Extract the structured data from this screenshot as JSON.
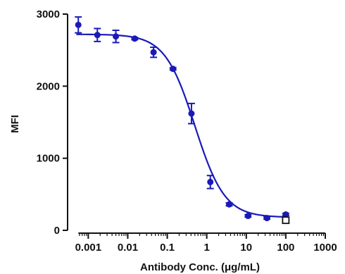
{
  "chart_data": {
    "type": "scatter",
    "xlabel": "Antibody Conc. (μg/mL)",
    "ylabel": "MFI",
    "x_scale": "log",
    "xlim": [
      0.0003,
      1000
    ],
    "ylim": [
      0,
      3000
    ],
    "x_ticks": [
      0.001,
      0.01,
      0.1,
      1,
      10,
      100,
      1000
    ],
    "x_tick_labels": [
      "0.001",
      "0.01",
      "0.1",
      "1",
      "10",
      "100",
      "1000"
    ],
    "y_ticks": [
      0,
      1000,
      2000,
      3000
    ],
    "y_tick_labels": [
      "0",
      "1000",
      "2000",
      "3000"
    ],
    "grid": false,
    "legend": "none",
    "colors": {
      "series": "#1a1ab8",
      "axis": "#111111"
    },
    "series": [
      {
        "marker": "circle",
        "points": [
          {
            "x": 0.00056,
            "y": 2850,
            "err": 110
          },
          {
            "x": 0.0017,
            "y": 2710,
            "err": 90
          },
          {
            "x": 0.005,
            "y": 2690,
            "err": 85
          },
          {
            "x": 0.015,
            "y": 2660,
            "err": 15
          },
          {
            "x": 0.045,
            "y": 2470,
            "err": 70
          },
          {
            "x": 0.14,
            "y": 2240,
            "err": 15
          },
          {
            "x": 0.41,
            "y": 1620,
            "err": 140
          },
          {
            "x": 1.23,
            "y": 670,
            "err": 90
          },
          {
            "x": 3.7,
            "y": 360,
            "err": 20
          },
          {
            "x": 11.1,
            "y": 200,
            "err": 15
          },
          {
            "x": 33.3,
            "y": 170,
            "err": 15
          },
          {
            "x": 100,
            "y": 220,
            "err": 15
          }
        ]
      },
      {
        "marker": "open-square",
        "points": [
          {
            "x": 100,
            "y": 140
          }
        ]
      }
    ],
    "fit_curve": {
      "model": "4PL",
      "top": 2720,
      "bottom": 180,
      "ec50": 0.5,
      "hill": 1.15,
      "x_range": [
        0.0005,
        100
      ]
    }
  }
}
